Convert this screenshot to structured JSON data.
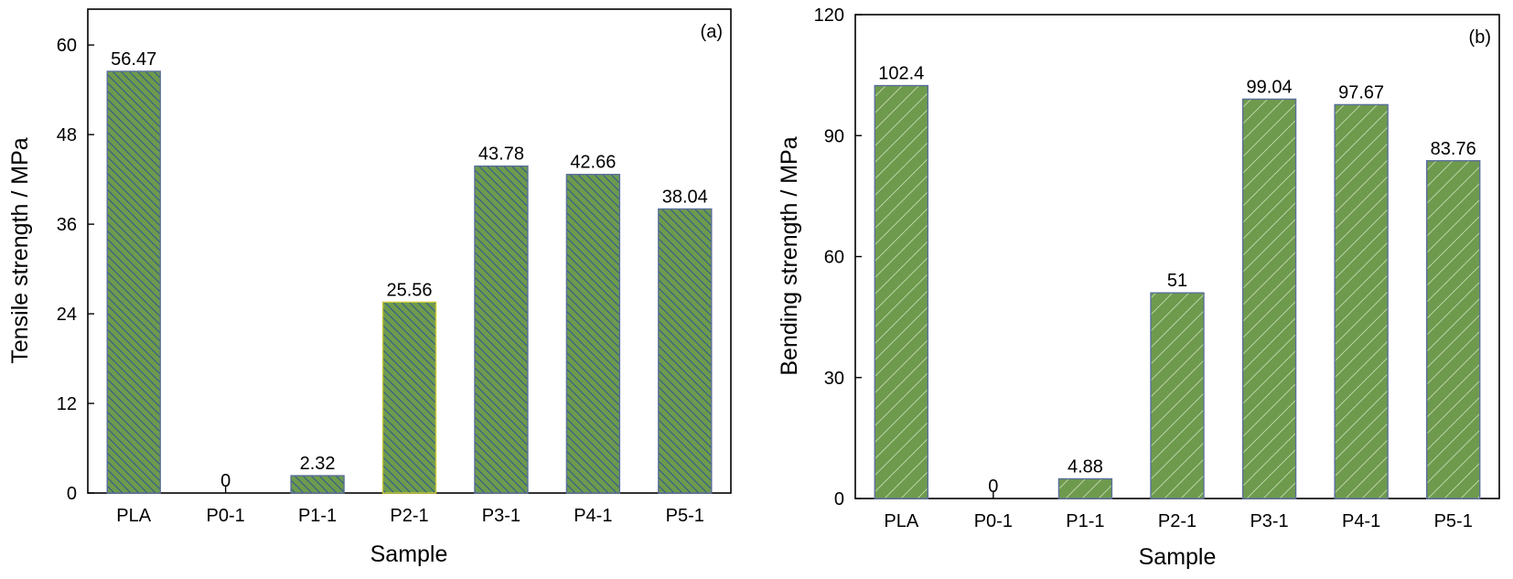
{
  "chart_data": [
    {
      "type": "bar",
      "panel_label": "(a)",
      "categories": [
        "PLA",
        "P0-1",
        "P1-1",
        "P2-1",
        "P3-1",
        "P4-1",
        "P5-1"
      ],
      "values": [
        56.47,
        0,
        2.32,
        25.56,
        43.78,
        42.66,
        38.04
      ],
      "data_labels": [
        "56.47",
        "0",
        "2.32",
        "25.56",
        "43.78",
        "42.66",
        "38.04"
      ],
      "xlabel": "Sample",
      "ylabel": "Tensile strength / MPa",
      "ylim": [
        0,
        64.8
      ],
      "yticks": [
        0,
        12,
        24,
        36,
        48,
        60
      ],
      "ytick_labels": [
        "0",
        "12",
        "24",
        "36",
        "48",
        "60"
      ],
      "bar_color": "#6e9a4e",
      "hatch_color": "#2e5a8a",
      "hatch": "backslash",
      "grid": false
    },
    {
      "type": "bar",
      "panel_label": "(b)",
      "categories": [
        "PLA",
        "P0-1",
        "P1-1",
        "P2-1",
        "P3-1",
        "P4-1",
        "P5-1"
      ],
      "values": [
        102.4,
        0,
        4.88,
        51,
        99.04,
        97.67,
        83.76
      ],
      "data_labels": [
        "102.4",
        "0",
        "4.88",
        "51",
        "99.04",
        "97.67",
        "83.76"
      ],
      "xlabel": "Sample",
      "ylabel": "Bending strength / MPa",
      "ylim": [
        0,
        120
      ],
      "yticks": [
        0,
        30,
        60,
        90,
        120
      ],
      "ytick_labels": [
        "0",
        "30",
        "60",
        "90",
        "120"
      ],
      "bar_color": "#6e9a4e",
      "hatch_color": "#c8ddb0",
      "hatch": "slash",
      "grid": false
    }
  ]
}
